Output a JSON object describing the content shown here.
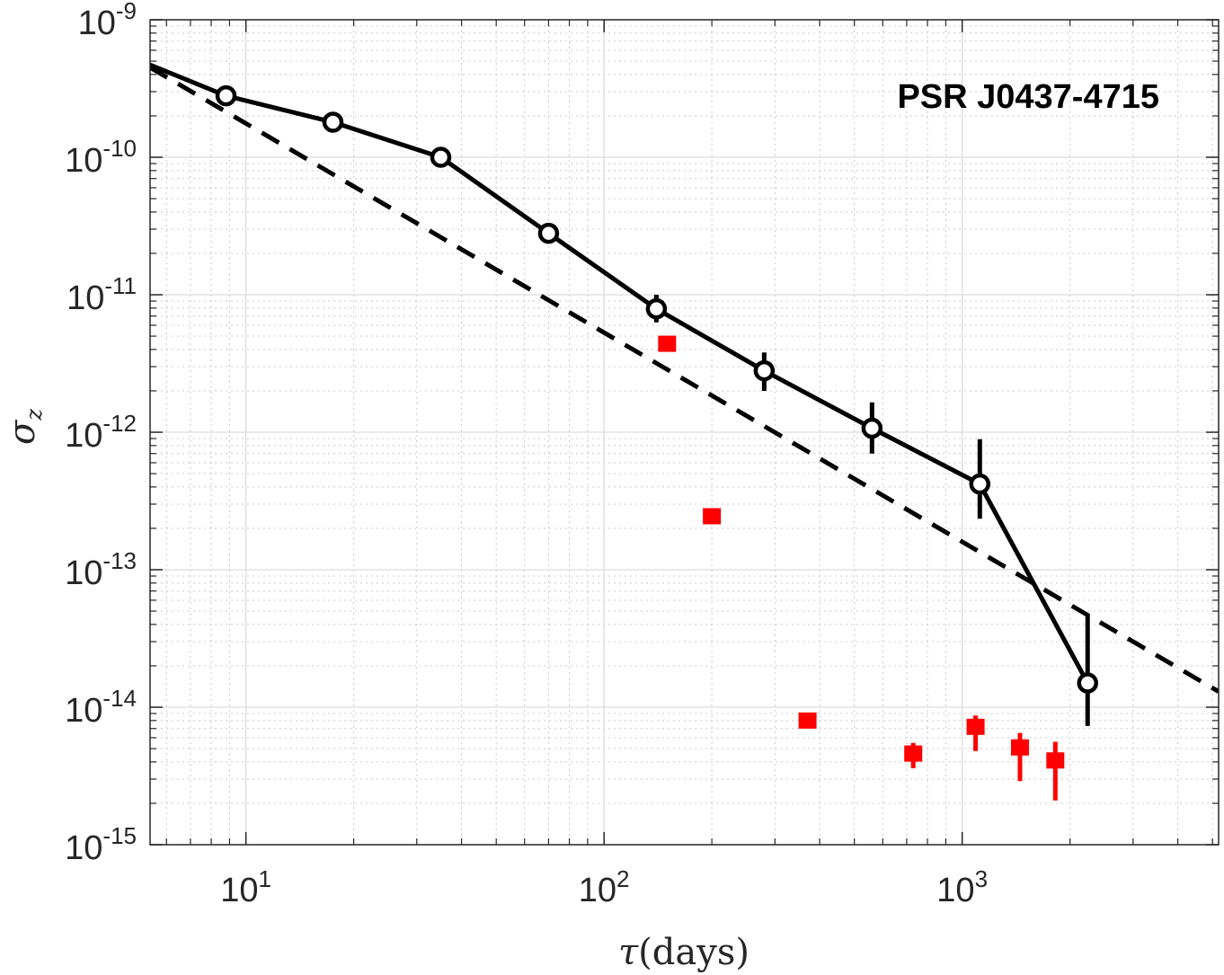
{
  "chart_data": {
    "type": "scatter",
    "title": "",
    "xlabel_symbol": "τ",
    "xlabel_unit": "(days)",
    "ylabel_symbol": "σ",
    "ylabel_sub": "z",
    "xscale": "log",
    "yscale": "log",
    "xlim": [
      5.4,
      5200
    ],
    "ylim": [
      1e-15,
      1e-09
    ],
    "grid": true,
    "minor_grid": true,
    "annotation": "PSR J0437-4715",
    "x_ticks": [
      {
        "value": 10,
        "base": "10",
        "exp": "1"
      },
      {
        "value": 100,
        "base": "10",
        "exp": "2"
      },
      {
        "value": 1000,
        "base": "10",
        "exp": "3"
      }
    ],
    "y_ticks": [
      {
        "value": 1e-15,
        "base": "10",
        "exp": "-15"
      },
      {
        "value": 1e-14,
        "base": "10",
        "exp": "-14"
      },
      {
        "value": 1e-13,
        "base": "10",
        "exp": "-13"
      },
      {
        "value": 1e-12,
        "base": "10",
        "exp": "-12"
      },
      {
        "value": 1e-11,
        "base": "10",
        "exp": "-11"
      },
      {
        "value": 1e-10,
        "base": "10",
        "exp": "-10"
      },
      {
        "value": 1e-09,
        "base": "10",
        "exp": "-9"
      }
    ],
    "series": [
      {
        "name": "black-measured",
        "color": "#000000",
        "marker": "circle",
        "line": "solid",
        "x_start": 5.4,
        "y_start": 4.7e-10,
        "points": [
          {
            "x": 8.8,
            "y": 2.8e-10,
            "lo": 2.6e-10,
            "hi": 3e-10
          },
          {
            "x": 17.5,
            "y": 1.8e-10,
            "lo": 1.68e-10,
            "hi": 1.92e-10
          },
          {
            "x": 35,
            "y": 1e-10,
            "lo": 9.2e-11,
            "hi": 1.08e-10
          },
          {
            "x": 70,
            "y": 2.8e-11,
            "lo": 2.5e-11,
            "hi": 3.1e-11
          },
          {
            "x": 140,
            "y": 7.9e-12,
            "lo": 6.3e-12,
            "hi": 1e-11
          },
          {
            "x": 280,
            "y": 2.8e-12,
            "lo": 2e-12,
            "hi": 3.8e-12
          },
          {
            "x": 560,
            "y": 1.07e-12,
            "lo": 7e-13,
            "hi": 1.65e-12
          },
          {
            "x": 1120,
            "y": 4.2e-13,
            "lo": 2.35e-13,
            "hi": 8.9e-13
          },
          {
            "x": 2240,
            "y": 1.5e-14,
            "lo": 7.3e-15,
            "hi": 4.7e-14
          }
        ]
      },
      {
        "name": "dashed-fit",
        "color": "#000000",
        "line": "dashed",
        "points": [
          {
            "x": 5.4,
            "y": 4.5e-10
          },
          {
            "x": 5200,
            "y": 1.3e-14
          }
        ]
      },
      {
        "name": "red-squares",
        "color": "#ff0000",
        "marker": "square",
        "points": [
          {
            "x": 150,
            "y": 4.4e-12,
            "lo": 4.4e-12,
            "hi": 4.4e-12
          },
          {
            "x": 200,
            "y": 2.45e-13,
            "lo": 2.45e-13,
            "hi": 2.45e-13
          },
          {
            "x": 370,
            "y": 8e-15,
            "lo": 7.3e-15,
            "hi": 8.6e-15
          },
          {
            "x": 730,
            "y": 4.6e-15,
            "lo": 3.6e-15,
            "hi": 5.5e-15
          },
          {
            "x": 1090,
            "y": 7.2e-15,
            "lo": 4.8e-15,
            "hi": 8.7e-15
          },
          {
            "x": 1450,
            "y": 5.1e-15,
            "lo": 2.9e-15,
            "hi": 6.5e-15
          },
          {
            "x": 1820,
            "y": 4.1e-15,
            "lo": 2.1e-15,
            "hi": 5.6e-15
          }
        ]
      }
    ]
  }
}
